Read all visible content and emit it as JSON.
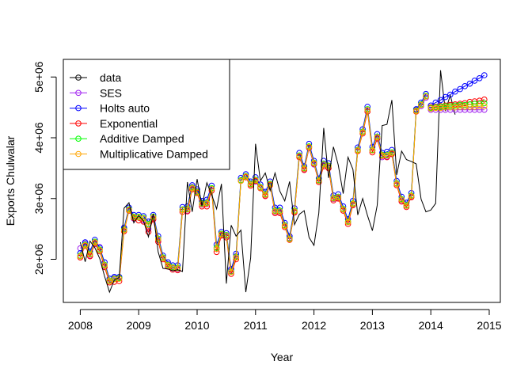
{
  "chart_data": {
    "type": "line",
    "xlabel": "Year",
    "ylabel": "Exports Chulwalar",
    "xlim": [
      2007.71,
      2015.19
    ],
    "ylim": [
      1290000,
      5290000
    ],
    "x_ticks": [
      2008,
      2009,
      2010,
      2011,
      2012,
      2013,
      2014,
      2015
    ],
    "x_tick_labels": [
      "2008",
      "2009",
      "2010",
      "2011",
      "2012",
      "2013",
      "2014",
      "2015"
    ],
    "y_ticks": [
      2000000,
      3000000,
      4000000,
      5000000
    ],
    "y_tick_labels": [
      "2e+06",
      "3e+06",
      "4e+06",
      "5e+06"
    ],
    "legend": {
      "position": "top-left",
      "entries": [
        {
          "label": "data",
          "color": "#000000"
        },
        {
          "label": "SES",
          "color": "#a020f0"
        },
        {
          "label": "Holts auto",
          "color": "#0000ff"
        },
        {
          "label": "Exponential",
          "color": "#ff0000"
        },
        {
          "label": "Additive Damped",
          "color": "#00ff00"
        },
        {
          "label": "Multiplicative Damped",
          "color": "#ffa500"
        }
      ]
    },
    "data_series": {
      "name": "data",
      "color": "#000000",
      "x_start": 2008,
      "x_step": 0.08333,
      "values": [
        2280000,
        1960000,
        2300000,
        2190000,
        2010000,
        1720000,
        1460000,
        1660000,
        1700000,
        2840000,
        2930000,
        2600000,
        2720000,
        2630000,
        2370000,
        2750000,
        2120000,
        1850000,
        1840000,
        1810000,
        1830000,
        1800000,
        3270000,
        2780000,
        3320000,
        2880000,
        3260000,
        3060000,
        2830000,
        3240000,
        1600000,
        2560000,
        2380000,
        2480000,
        1460000,
        2020000,
        3900000,
        3290000,
        3420000,
        3130000,
        3420000,
        3120000,
        2960000,
        3280000,
        2570000,
        2740000,
        2800000,
        2360000,
        2230000,
        2760000,
        4160000,
        3340000,
        3850000,
        3550000,
        3080000,
        3680000,
        3480000,
        2730000,
        3000000,
        2720000,
        2470000,
        2890000,
        4200000,
        4220000,
        4620000,
        3390000,
        3780000,
        3640000,
        3610000,
        3570000,
        2990000,
        2780000,
        2810000,
        2920000,
        5110000,
        4440000,
        4700000,
        4380000
      ]
    },
    "fitted_series": [
      {
        "name": "SES",
        "color": "#a020f0",
        "x_start": 2008,
        "x_step": 0.08333,
        "values": [
          2180000,
          2260000,
          2060000,
          2250000,
          2200000,
          1880000,
          1650000,
          1690000,
          1690000,
          2500000,
          2820000,
          2670000,
          2690000,
          2640000,
          2500000,
          2660000,
          2320000,
          2020000,
          1920000,
          1850000,
          1840000,
          2820000,
          2800000,
          3190000,
          3120000,
          2900000,
          2910000,
          3160000,
          2170000,
          2400000,
          2380000,
          1810000,
          2050000,
          3300000,
          3370000,
          3230000,
          3280000,
          3180000,
          3050000,
          3230000,
          2780000,
          2780000,
          2560000,
          2350000,
          2780000,
          3690000,
          3480000,
          3830000,
          3560000,
          3290000,
          3550000,
          3510000,
          2990000,
          3010000,
          2820000,
          2610000,
          2900000,
          3800000,
          4100000,
          4460000,
          3790000,
          3980000,
          3680000,
          3690000,
          3740000,
          3250000,
          2970000,
          2880000,
          3030000,
          4460000,
          4520000,
          4660000
        ]
      },
      {
        "name": "Holts auto",
        "color": "#0000ff",
        "x_start": 2008,
        "x_step": 0.08333,
        "values": [
          2100000,
          2280000,
          2130000,
          2320000,
          2190000,
          1950000,
          1680000,
          1710000,
          1710000,
          2520000,
          2850000,
          2730000,
          2730000,
          2710000,
          2620000,
          2730000,
          2380000,
          2060000,
          1950000,
          1900000,
          1900000,
          2860000,
          2870000,
          3220000,
          3150000,
          2960000,
          2980000,
          3210000,
          2240000,
          2450000,
          2430000,
          1840000,
          2090000,
          3340000,
          3400000,
          3280000,
          3350000,
          3230000,
          3110000,
          3280000,
          2850000,
          2850000,
          2600000,
          2380000,
          2840000,
          3750000,
          3530000,
          3900000,
          3620000,
          3330000,
          3620000,
          3580000,
          3050000,
          3070000,
          2870000,
          2660000,
          2960000,
          3840000,
          4140000,
          4510000,
          3850000,
          4060000,
          3750000,
          3770000,
          3800000,
          3290000,
          3030000,
          2930000,
          3090000,
          4470000,
          4580000,
          4720000
        ]
      },
      {
        "name": "Exponential",
        "color": "#ff0000",
        "x_start": 2008,
        "x_step": 0.08333,
        "values": [
          2030000,
          2220000,
          2050000,
          2260000,
          2130000,
          1870000,
          1620000,
          1630000,
          1640000,
          2460000,
          2800000,
          2680000,
          2640000,
          2620000,
          2450000,
          2660000,
          2290000,
          2000000,
          1880000,
          1830000,
          1820000,
          2780000,
          2790000,
          3150000,
          3090000,
          2870000,
          2870000,
          3130000,
          2120000,
          2390000,
          2360000,
          1760000,
          2000000,
          3290000,
          3350000,
          3210000,
          3290000,
          3170000,
          3040000,
          3220000,
          2760000,
          2760000,
          2530000,
          2320000,
          2770000,
          3680000,
          3470000,
          3840000,
          3570000,
          3270000,
          3530000,
          3500000,
          2970000,
          3000000,
          2800000,
          2580000,
          2890000,
          3780000,
          4070000,
          4430000,
          3760000,
          3990000,
          3700000,
          3680000,
          3730000,
          3220000,
          2950000,
          2860000,
          3020000,
          4430000,
          4540000,
          4680000
        ]
      },
      {
        "name": "Additive Damped",
        "color": "#00ff00",
        "x_start": 2008,
        "x_step": 0.08333,
        "values": [
          2060000,
          2240000,
          2090000,
          2290000,
          2160000,
          1910000,
          1650000,
          1680000,
          1690000,
          2490000,
          2820000,
          2700000,
          2700000,
          2680000,
          2580000,
          2700000,
          2340000,
          2030000,
          1910000,
          1870000,
          1860000,
          2820000,
          2830000,
          3180000,
          3110000,
          2920000,
          2930000,
          3170000,
          2190000,
          2420000,
          2400000,
          1800000,
          2040000,
          3300000,
          3370000,
          3240000,
          3310000,
          3190000,
          3070000,
          3240000,
          2800000,
          2800000,
          2560000,
          2340000,
          2800000,
          3710000,
          3500000,
          3860000,
          3590000,
          3300000,
          3570000,
          3540000,
          3010000,
          3030000,
          2830000,
          2620000,
          2920000,
          3800000,
          4100000,
          4470000,
          3800000,
          4020000,
          3720000,
          3720000,
          3760000,
          3250000,
          2990000,
          2890000,
          3050000,
          4450000,
          4550000,
          4690000
        ]
      },
      {
        "name": "Multiplicative Damped",
        "color": "#ffa500",
        "x_start": 2008,
        "x_step": 0.08333,
        "values": [
          2050000,
          2230000,
          2080000,
          2280000,
          2150000,
          1900000,
          1640000,
          1670000,
          1680000,
          2480000,
          2810000,
          2690000,
          2690000,
          2670000,
          2560000,
          2690000,
          2330000,
          2020000,
          1900000,
          1860000,
          1850000,
          2810000,
          2820000,
          3170000,
          3100000,
          2910000,
          2920000,
          3160000,
          2170000,
          2410000,
          2390000,
          1790000,
          2030000,
          3290000,
          3360000,
          3230000,
          3300000,
          3180000,
          3060000,
          3230000,
          2790000,
          2790000,
          2550000,
          2330000,
          2790000,
          3700000,
          3490000,
          3850000,
          3580000,
          3290000,
          3560000,
          3530000,
          3000000,
          3020000,
          2820000,
          2610000,
          2910000,
          3790000,
          4090000,
          4460000,
          3790000,
          4010000,
          3710000,
          3710000,
          3750000,
          3240000,
          2980000,
          2880000,
          3040000,
          4440000,
          4540000,
          4680000
        ]
      }
    ],
    "forecast_series": [
      {
        "name": "SES",
        "color": "#a020f0",
        "x_start": 2014,
        "x_step": 0.08333,
        "values": [
          4460000,
          4460000,
          4460000,
          4460000,
          4460000,
          4460000,
          4460000,
          4460000,
          4460000,
          4460000,
          4460000,
          4460000
        ]
      },
      {
        "name": "Holts auto",
        "color": "#0000ff",
        "x_start": 2014,
        "x_step": 0.08333,
        "values": [
          4530000,
          4580000,
          4620000,
          4670000,
          4710000,
          4760000,
          4800000,
          4850000,
          4890000,
          4940000,
          4980000,
          5030000
        ]
      },
      {
        "name": "Exponential",
        "color": "#ff0000",
        "x_start": 2014,
        "x_step": 0.08333,
        "values": [
          4500000,
          4510000,
          4520000,
          4530000,
          4540000,
          4550000,
          4560000,
          4570000,
          4590000,
          4600000,
          4610000,
          4630000
        ]
      },
      {
        "name": "Additive Damped",
        "color": "#00ff00",
        "x_start": 2014,
        "x_step": 0.08333,
        "values": [
          4490000,
          4500000,
          4510000,
          4520000,
          4520000,
          4530000,
          4540000,
          4540000,
          4550000,
          4560000,
          4560000,
          4570000
        ]
      },
      {
        "name": "Multiplicative Damped",
        "color": "#ffa500",
        "x_start": 2014,
        "x_step": 0.08333,
        "values": [
          4480000,
          4490000,
          4490000,
          4500000,
          4500000,
          4500000,
          4510000,
          4510000,
          4510000,
          4510000,
          4520000,
          4520000
        ]
      }
    ]
  }
}
